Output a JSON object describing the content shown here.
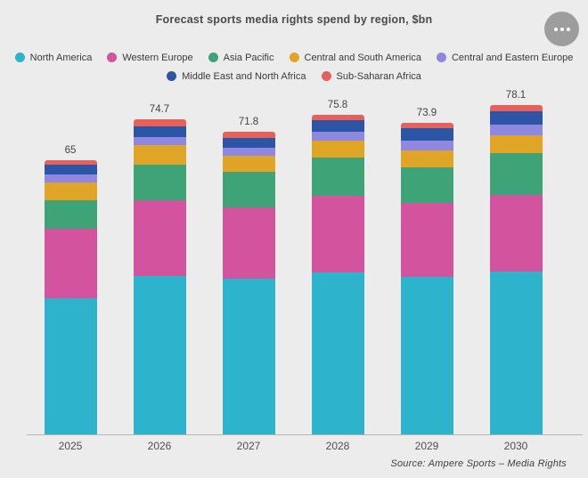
{
  "header": {
    "title": "Forecast sports media rights spend by region, $bn"
  },
  "more_menu": {
    "icon": "ellipsis"
  },
  "footer": {
    "source": "Source:  Ampere Sports – Media Rights"
  },
  "chart_data": {
    "type": "bar",
    "stacked": true,
    "title": "Forecast sports media rights spend by region, $bn",
    "xlabel": "",
    "ylabel": "$bn",
    "ylim": [
      0,
      80
    ],
    "grid": false,
    "legend_position": "top",
    "categories": [
      "2025",
      "2026",
      "2027",
      "2028",
      "2029",
      "2030"
    ],
    "series": [
      {
        "name": "North America",
        "color": "#2eb3cc",
        "values": [
          32.2,
          37.6,
          36.9,
          38.5,
          37.4,
          38.7
        ]
      },
      {
        "name": "Western Europe",
        "color": "#d4539f",
        "values": [
          16.6,
          17.9,
          17.0,
          18.1,
          17.4,
          18.0
        ]
      },
      {
        "name": "Asia Pacific",
        "color": "#3ea377",
        "values": [
          6.6,
          8.5,
          8.3,
          9.0,
          8.5,
          10.1
        ]
      },
      {
        "name": "Central and South America",
        "color": "#e0a426",
        "values": [
          4.3,
          4.6,
          4.0,
          4.1,
          4.1,
          4.1
        ]
      },
      {
        "name": "Central and Eastern Europe",
        "color": "#8f88e0",
        "values": [
          2.0,
          1.9,
          1.9,
          2.0,
          2.2,
          2.5
        ]
      },
      {
        "name": "Middle East and North Africa",
        "color": "#2c55a5",
        "values": [
          2.2,
          2.6,
          2.3,
          2.8,
          3.0,
          3.3
        ]
      },
      {
        "name": "Sub-Saharan Africa",
        "color": "#e6615c",
        "values": [
          1.1,
          1.6,
          1.4,
          1.3,
          1.3,
          1.4
        ]
      }
    ],
    "totals": [
      65,
      74.7,
      71.8,
      75.8,
      73.9,
      78.1
    ],
    "total_labels": [
      "65",
      "74.7",
      "71.8",
      "75.8",
      "73.9",
      "78.1"
    ],
    "legend_rows": [
      [
        0,
        1,
        2,
        3,
        4
      ],
      [
        5,
        6
      ]
    ],
    "colors": {
      "background": "#ececec",
      "axis": "#b9b5b0",
      "title_text": "#4a4a4a",
      "label_text": "#4f4f4f",
      "more_button": "#9d9d9d"
    }
  }
}
